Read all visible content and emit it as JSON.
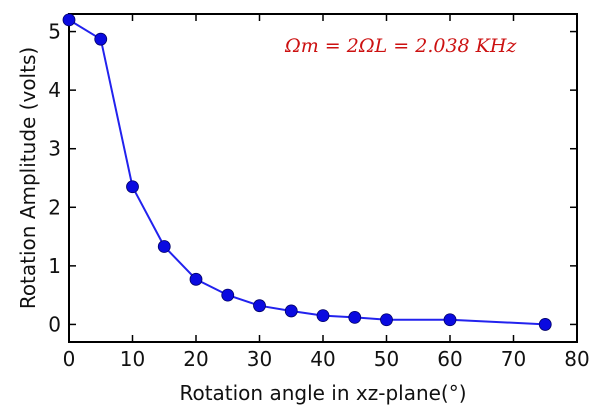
{
  "chart_data": {
    "type": "line",
    "title": "",
    "xlabel": "Rotation angle in xz-plane(°)",
    "ylabel": "Rotation Amplitude (volts)",
    "xlim": [
      0,
      80
    ],
    "ylim": [
      -0.3,
      5.3
    ],
    "xticks": [
      0,
      10,
      20,
      30,
      40,
      50,
      60,
      70,
      80
    ],
    "yticks": [
      0,
      1,
      2,
      3,
      4,
      5
    ],
    "grid": false,
    "annotation": "Ωm = 2ΩL = 2.038 KHz",
    "series": [
      {
        "x": [
          0,
          5,
          10,
          15,
          20,
          25,
          30,
          35,
          40,
          45,
          50,
          60,
          75
        ],
        "y": [
          5.2,
          4.87,
          2.35,
          1.33,
          0.77,
          0.5,
          0.32,
          0.23,
          0.15,
          0.12,
          0.08,
          0.08,
          0.0
        ],
        "color": "#2222ee",
        "marker": "circle"
      }
    ]
  }
}
